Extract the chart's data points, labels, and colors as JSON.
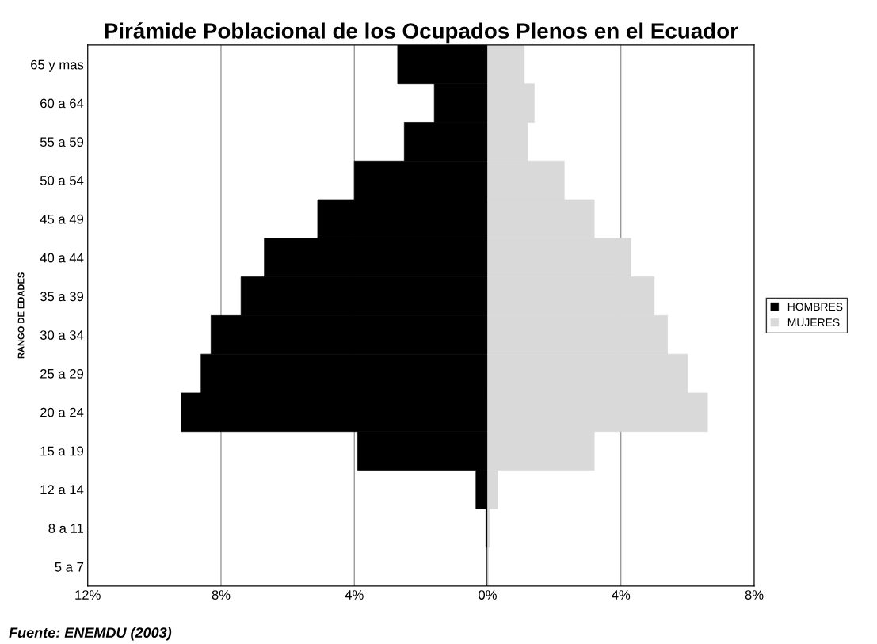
{
  "chart_data": {
    "type": "bar",
    "orientation": "horizontal",
    "stacked": true,
    "title": "Pirámide Poblacional de los Ocupados Plenos en el Ecuador",
    "ylabel": "RANGO DE EDADES",
    "categories": [
      "65 y mas",
      "60 a 64",
      "55 a 59",
      "50 a 54",
      "45 a 49",
      "40 a 44",
      "35 a 39",
      "30 a 34",
      "25 a 29",
      "20 a 24",
      "15 a 19",
      "12 a 14",
      "8 a 11",
      "5 a 7"
    ],
    "series": [
      {
        "name": "HOMBRES",
        "color": "#000000",
        "values": [
          -2.7,
          -1.6,
          -2.5,
          -4.0,
          -5.1,
          -6.7,
          -7.4,
          -8.3,
          -8.6,
          -9.2,
          -3.9,
          -0.35,
          -0.05,
          -0.02
        ]
      },
      {
        "name": "MUJERES",
        "color": "#d9d9d9",
        "values": [
          1.1,
          1.4,
          1.2,
          2.3,
          3.2,
          4.3,
          5.0,
          5.4,
          6.0,
          6.6,
          3.2,
          0.3,
          0.05,
          0.02
        ]
      }
    ],
    "xlim": [
      -12,
      8
    ],
    "xticks": [
      {
        "value": -12,
        "label": "12%"
      },
      {
        "value": -8,
        "label": "8%"
      },
      {
        "value": -4,
        "label": "4%"
      },
      {
        "value": 0,
        "label": "0%"
      },
      {
        "value": 4,
        "label": "4%"
      },
      {
        "value": 8,
        "label": "8%"
      }
    ],
    "grid": "x",
    "legend": "right",
    "annotations": [
      "Fuente: ENEMDU (2003)"
    ]
  }
}
